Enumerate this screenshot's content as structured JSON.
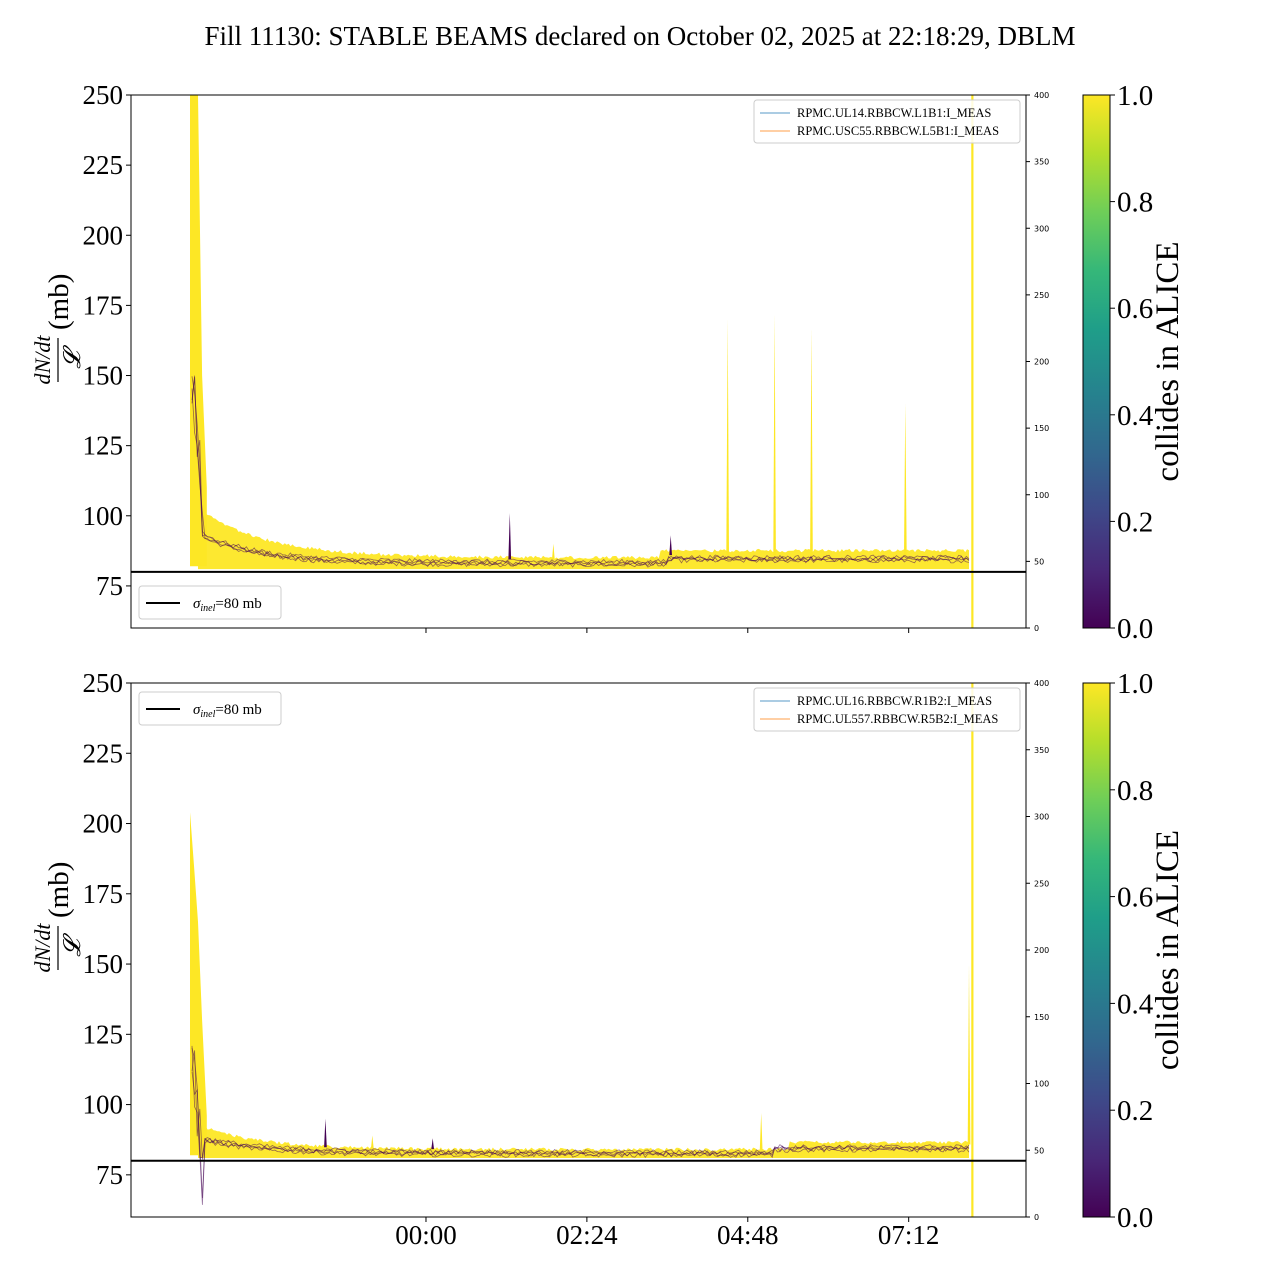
{
  "page_title": "Fill 11130: STABLE BEAMS declared on October 02, 2025 at 22:18:29, DBLM",
  "colors": {
    "colormap": [
      "#440154",
      "#482878",
      "#3e4989",
      "#31688e",
      "#26828e",
      "#1f9e89",
      "#35b779",
      "#6ece58",
      "#b5de2b",
      "#fde725"
    ],
    "trace_yellow": "#fde725",
    "trace_purple": "#440154",
    "legend_line_blue": "#1f77b4",
    "legend_line_orange": "#ff7f0e",
    "threshold": "#000000"
  },
  "chart_data": [
    {
      "type": "line",
      "id": "top",
      "ylabel": "dN/dt / 𝓛 (mb)",
      "ylabel_num": "dN/dt",
      "ylabel_den": "𝓛",
      "ylabel_unit": "(mb)",
      "ylim": [
        60,
        250
      ],
      "yticks": [
        75,
        100,
        125,
        150,
        175,
        200,
        225,
        250
      ],
      "y2lim": [
        0,
        400
      ],
      "y2ticks": [
        0,
        50,
        100,
        150,
        200,
        250,
        300,
        350,
        400
      ],
      "xlim_hours": [
        -4.4,
        8.95
      ],
      "xticks_hours": [
        0,
        2.4,
        4.8,
        7.2
      ],
      "xtick_labels": [
        "",
        "",
        "",
        ""
      ],
      "threshold": {
        "value": 80,
        "label_symbol": "σ",
        "label_sub": "inel",
        "label_rest": "=80 mb"
      },
      "legend": [
        "RPMC.UL14.RBBCW.L1B1:I_MEAS",
        "RPMC.USC55.RBBCW.L5B1:I_MEAS"
      ],
      "vline_hours": 8.15,
      "spikes": [
        {
          "t": 1.25,
          "v": 101
        },
        {
          "t": 1.9,
          "v": 90
        },
        {
          "t": 3.65,
          "v": 93
        },
        {
          "t": 4.5,
          "v": 170
        },
        {
          "t": 5.2,
          "v": 172
        },
        {
          "t": 5.75,
          "v": 167
        },
        {
          "t": 7.15,
          "v": 140
        }
      ],
      "colorbar": {
        "label": "collides in ALICE",
        "ticks": [
          0.0,
          0.2,
          0.4,
          0.6,
          0.8,
          1.0
        ],
        "tick_labels": [
          "0.0",
          "0.2",
          "0.4",
          "0.6",
          "0.8",
          "1.0"
        ]
      }
    },
    {
      "type": "line",
      "id": "bottom",
      "ylabel": "dN/dt / 𝓛 (mb)",
      "ylabel_num": "dN/dt",
      "ylabel_den": "𝓛",
      "ylabel_unit": "(mb)",
      "ylim": [
        60,
        250
      ],
      "yticks": [
        75,
        100,
        125,
        150,
        175,
        200,
        225,
        250
      ],
      "y2lim": [
        0,
        400
      ],
      "y2ticks": [
        0,
        50,
        100,
        150,
        200,
        250,
        300,
        350,
        400
      ],
      "xlim_hours": [
        -4.4,
        8.95
      ],
      "xticks_hours": [
        0,
        2.4,
        4.8,
        7.2
      ],
      "xtick_labels": [
        "00:00",
        "02:24",
        "04:48",
        "07:12"
      ],
      "threshold": {
        "value": 80,
        "label_symbol": "σ",
        "label_sub": "inel",
        "label_rest": "=80 mb"
      },
      "legend": [
        "RPMC.UL16.RBBCW.R1B2:I_MEAS",
        "RPMC.UL557.RBBCW.R5B2:I_MEAS"
      ],
      "vline_hours": 8.15,
      "spikes": [
        {
          "t": -1.5,
          "v": 95
        },
        {
          "t": -0.8,
          "v": 89
        },
        {
          "t": 0.1,
          "v": 88
        },
        {
          "t": 5.0,
          "v": 97
        },
        {
          "t": 8.1,
          "v": 150
        }
      ],
      "colorbar": {
        "label": "collides in ALICE",
        "ticks": [
          0.0,
          0.2,
          0.4,
          0.6,
          0.8,
          1.0
        ],
        "tick_labels": [
          "0.0",
          "0.2",
          "0.4",
          "0.6",
          "0.8",
          "1.0"
        ]
      }
    }
  ]
}
